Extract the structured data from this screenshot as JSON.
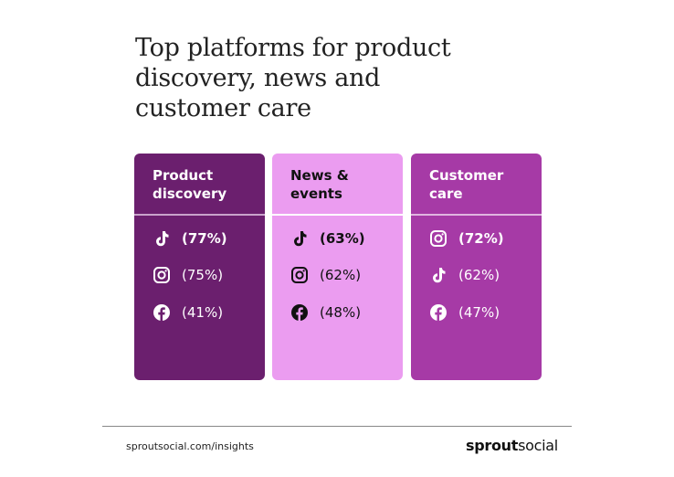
{
  "title_lines": [
    "Top platforms for product",
    "discovery, news and",
    "customer care"
  ],
  "cards": [
    {
      "heading_lines": [
        "Product",
        "discovery"
      ],
      "rows": [
        "(77%)",
        "(75%)",
        "(41%)"
      ]
    },
    {
      "heading_lines": [
        "News &",
        "events"
      ],
      "rows": [
        "(63%)",
        "(62%)",
        "(48%)"
      ]
    },
    {
      "heading_lines": [
        "Customer",
        "care"
      ],
      "rows": [
        "(72%)",
        "(62%)",
        "(47%)"
      ]
    }
  ],
  "footer": {
    "url": "sproutsocial.com/insights",
    "brand_bold": "sprout",
    "brand_light": "social"
  }
}
